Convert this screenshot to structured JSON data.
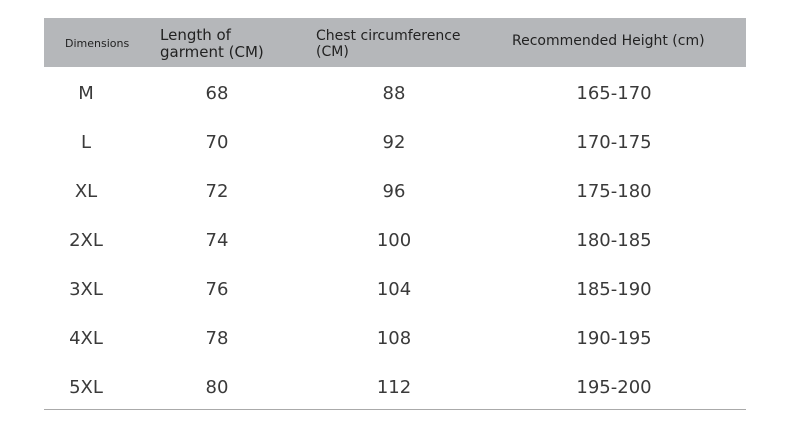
{
  "table": {
    "headers": [
      "Dimensions",
      "Length of garment (CM)",
      "Chest circumference (CM)",
      "Recommended Height (cm)"
    ],
    "header_bg": "#b5b7ba",
    "rows": [
      [
        "M",
        "68",
        "88",
        "165-170"
      ],
      [
        "L",
        "70",
        "92",
        "170-175"
      ],
      [
        "XL",
        "72",
        "96",
        "175-180"
      ],
      [
        "2XL",
        "74",
        "100",
        "180-185"
      ],
      [
        "3XL",
        "76",
        "104",
        "185-190"
      ],
      [
        "4XL",
        "78",
        "108",
        "190-195"
      ],
      [
        "5XL",
        "80",
        "112",
        "195-200"
      ]
    ]
  }
}
